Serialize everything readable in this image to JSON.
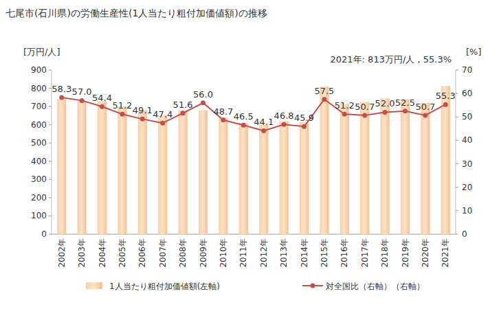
{
  "chart_data": {
    "type": "bar",
    "title": "七尾市(石川県)の労働生産性(1人当たり粗付加価値額)の推移",
    "annotation": "2021年: 813万円/人 , 55.3%",
    "y_label": "[万円/人]",
    "y2_label": "[%]",
    "categories": [
      "2002年",
      "2003年",
      "2004年",
      "2005年",
      "2006年",
      "2007年",
      "2008年",
      "2009年",
      "2010年",
      "2011年",
      "2012年",
      "2013年",
      "2014年",
      "2015年",
      "2016年",
      "2017年",
      "2018年",
      "2019年",
      "2020年",
      "2021年"
    ],
    "series": [
      {
        "name": "1人当たり粗付加価値額(左軸)",
        "type": "bar",
        "color": "#f7c08f",
        "values": [
          740,
          730,
          730,
          700,
          680,
          650,
          680,
          680,
          640,
          610,
          600,
          620,
          615,
          810,
          715,
          725,
          745,
          740,
          720,
          813
        ]
      },
      {
        "name": "対全国比（右軸）（右軸）",
        "type": "line",
        "axis": "y2",
        "color": "#c0504d",
        "marker": "circle",
        "data_labels": true,
        "values": [
          58.3,
          57.0,
          54.4,
          51.2,
          49.1,
          47.4,
          51.6,
          56.0,
          48.7,
          46.5,
          44.1,
          46.8,
          45.9,
          57.5,
          51.2,
          50.7,
          52.0,
          52.5,
          50.7,
          55.3
        ],
        "value_labels": [
          "58.3",
          "57.0",
          "54.4",
          "51.2",
          "49.1",
          "47.4",
          "51.6",
          "56.0",
          "48.7",
          "46.5",
          "44.1",
          "46.8",
          "45.9",
          "57.5",
          "51.2",
          "50.7",
          "52.0",
          "52.5",
          "50.7",
          "55.3"
        ]
      }
    ],
    "ylim": [
      0,
      900
    ],
    "yticks": [
      0,
      100,
      200,
      300,
      400,
      500,
      600,
      700,
      800,
      900
    ],
    "y2lim": [
      0,
      70
    ],
    "y2ticks": [
      0,
      10,
      20,
      30,
      40,
      50,
      60,
      70
    ],
    "grid": false,
    "legend": "bottom"
  }
}
